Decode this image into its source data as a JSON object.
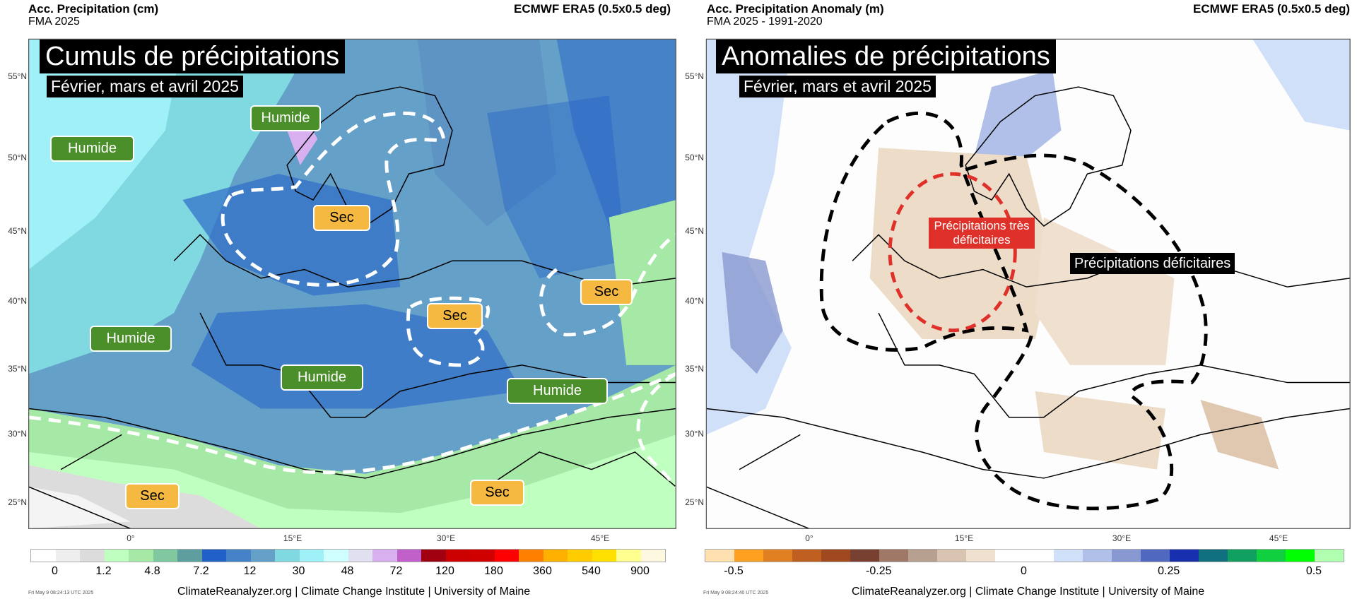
{
  "left": {
    "header_title": "Acc. Precipitation (cm)",
    "header_sub": "FMA 2025",
    "header_source": "ECMWF ERA5 (0.5x0.5 deg)",
    "map_title": "Cumuls de précipitations",
    "map_subtitle": "Février, mars et avril 2025",
    "tags": [
      "Humide",
      "Humide",
      "Sec",
      "Sec",
      "Sec",
      "Humide",
      "Humide",
      "Humide",
      "Sec",
      "Sec"
    ],
    "lat_labels": [
      "55°N",
      "50°N",
      "45°N",
      "40°N",
      "35°N",
      "30°N",
      "25°N"
    ],
    "lon_labels": [
      "0°",
      "15°E",
      "30°E",
      "45°E"
    ],
    "colorbar": {
      "colors": [
        "#ffffff",
        "#eeeeee",
        "#dcdcdc",
        "#bfffbf",
        "#a6e8a6",
        "#80c8a0",
        "#5f9e9e",
        "#2060c8",
        "#4682c8",
        "#64a0c8",
        "#80d8e0",
        "#a0f0f8",
        "#d0ffff",
        "#e0e0f0",
        "#d8b0f0",
        "#c060c8",
        "#a00010",
        "#cc0000",
        "#d00000",
        "#ff0000",
        "#ff8000",
        "#ffb000",
        "#ffcc00",
        "#ffe000",
        "#ffff90",
        "#fff8e0"
      ],
      "labels": [
        "0",
        "1.2",
        "4.8",
        "7.2",
        "12",
        "30",
        "48",
        "72",
        "120",
        "180",
        "360",
        "540",
        "900"
      ]
    },
    "timestamp": "Fri May  9 08:24:13 UTC 2025",
    "footer": "ClimateReanalyzer.org | Climate Change Institute | University of Maine"
  },
  "right": {
    "header_title": "Acc. Precipitation Anomaly (m)",
    "header_sub": "FMA 2025 - 1991-2020",
    "header_source": "ECMWF ERA5 (0.5x0.5 deg)",
    "map_title": "Anomalies de précipitations",
    "map_subtitle": "Février, mars et avril 2025",
    "red_tag": "Précipitations très déficitaires",
    "black_tag": "Précipitations déficitaires",
    "lat_labels": [
      "55°N",
      "50°N",
      "45°N",
      "40°N",
      "35°N",
      "30°N",
      "25°N"
    ],
    "lon_labels": [
      "0°",
      "15°E",
      "30°E",
      "45°E"
    ],
    "colorbar": {
      "colors": [
        "#ffe0b0",
        "#ffa020",
        "#e08020",
        "#c06020",
        "#a04820",
        "#784030",
        "#a07868",
        "#b8a090",
        "#d8c4b0",
        "#f0e0d0",
        "#ffffff",
        "#ffffff",
        "#d0e0f8",
        "#b0c0e8",
        "#8898d0",
        "#5068c0",
        "#1830b0",
        "#107080",
        "#10a060",
        "#10d040",
        "#00ff00",
        "#b0ffb0"
      ],
      "labels": [
        "-0.5",
        "-0.25",
        "0",
        "0.25",
        "0.5"
      ]
    },
    "timestamp": "Fri May  9 08:24:40 UTC 2025",
    "footer": "ClimateReanalyzer.org | Climate Change Institute | University of Maine"
  }
}
